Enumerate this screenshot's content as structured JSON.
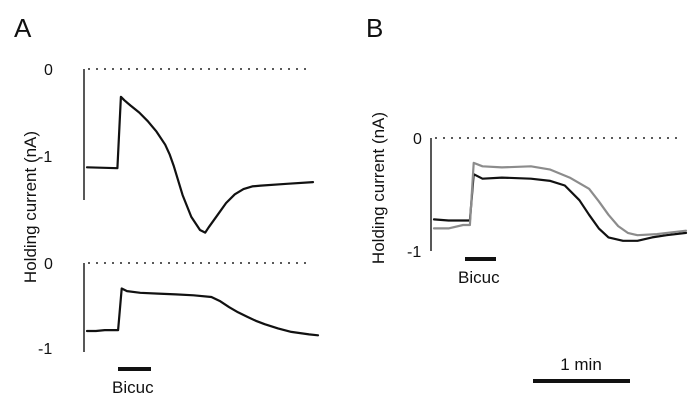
{
  "figure": {
    "panels": [
      {
        "id": "A",
        "label": "A"
      },
      {
        "id": "B",
        "label": "B"
      }
    ],
    "ylabel": "Holding current (nA)",
    "drug_label": "Bicuc",
    "scale_bar_label": "1 min"
  },
  "chart_data": [
    {
      "panel": "A",
      "position": "top",
      "type": "line",
      "ylabel": "Holding current (nA)",
      "yticks": [
        {
          "value": 0,
          "label": "0"
        },
        {
          "value": -1,
          "label": "-1"
        }
      ],
      "ylim": [
        -1.8,
        0.05
      ],
      "xlim": [
        0,
        260
      ],
      "x_units": "s",
      "drug_bar": {
        "label": "Bicuc",
        "start": 5,
        "end": 36
      },
      "series": [
        {
          "color": "#111111",
          "x": [
            0,
            35,
            39,
            43,
            50,
            60,
            70,
            80,
            90,
            95,
            100,
            110,
            120,
            130,
            136,
            140,
            150,
            160,
            170,
            180,
            190,
            200,
            230,
            260
          ],
          "y": [
            -1.13,
            -1.14,
            -0.32,
            -0.36,
            -0.42,
            -0.5,
            -0.6,
            -0.72,
            -0.87,
            -0.98,
            -1.12,
            -1.45,
            -1.7,
            -1.85,
            -1.88,
            -1.82,
            -1.68,
            -1.54,
            -1.44,
            -1.38,
            -1.35,
            -1.34,
            -1.32,
            -1.3
          ]
        }
      ]
    },
    {
      "panel": "A",
      "position": "bottom",
      "type": "line",
      "ylabel": "Holding current (nA)",
      "yticks": [
        {
          "value": 0,
          "label": "0"
        },
        {
          "value": -1,
          "label": "-1"
        }
      ],
      "ylim": [
        -1.05,
        0.05
      ],
      "xlim": [
        0,
        260
      ],
      "x_units": "s",
      "drug_bar": {
        "label": "Bicuc",
        "start": 35,
        "end": 70
      },
      "series": [
        {
          "color": "#111111",
          "x": [
            0,
            10,
            20,
            35,
            39,
            45,
            60,
            80,
            100,
            120,
            140,
            150,
            160,
            170,
            180,
            190,
            200,
            215,
            230,
            250,
            260
          ],
          "y": [
            -0.8,
            -0.8,
            -0.79,
            -0.79,
            -0.3,
            -0.33,
            -0.35,
            -0.36,
            -0.37,
            -0.38,
            -0.4,
            -0.45,
            -0.52,
            -0.58,
            -0.63,
            -0.68,
            -0.72,
            -0.77,
            -0.81,
            -0.84,
            -0.85
          ]
        }
      ]
    },
    {
      "panel": "B",
      "type": "line",
      "ylabel": "Holding current (nA)",
      "yticks": [
        {
          "value": 0,
          "label": "0"
        },
        {
          "value": -1,
          "label": "-1"
        }
      ],
      "ylim": [
        -1.05,
        0.05
      ],
      "xlim": [
        0,
        260
      ],
      "x_units": "s",
      "drug_bar": {
        "label": "Bicuc",
        "start": 28,
        "end": 62
      },
      "scale_bar": {
        "label": "1 min",
        "seconds": 60
      },
      "series": [
        {
          "color": "#111111",
          "x": [
            0,
            15,
            30,
            37,
            41,
            50,
            70,
            100,
            120,
            135,
            150,
            160,
            170,
            180,
            195,
            210,
            225,
            240,
            260
          ],
          "y": [
            -0.72,
            -0.73,
            -0.73,
            -0.73,
            -0.32,
            -0.36,
            -0.35,
            -0.36,
            -0.38,
            -0.42,
            -0.55,
            -0.68,
            -0.8,
            -0.88,
            -0.91,
            -0.91,
            -0.88,
            -0.86,
            -0.84
          ]
        },
        {
          "color": "#8c8c8c",
          "x": [
            0,
            15,
            30,
            37,
            41,
            50,
            70,
            100,
            120,
            140,
            160,
            170,
            180,
            190,
            200,
            210,
            230,
            250,
            260
          ],
          "y": [
            -0.8,
            -0.8,
            -0.77,
            -0.77,
            -0.22,
            -0.25,
            -0.26,
            -0.25,
            -0.28,
            -0.35,
            -0.45,
            -0.56,
            -0.68,
            -0.78,
            -0.84,
            -0.86,
            -0.85,
            -0.83,
            -0.82
          ]
        }
      ]
    }
  ]
}
